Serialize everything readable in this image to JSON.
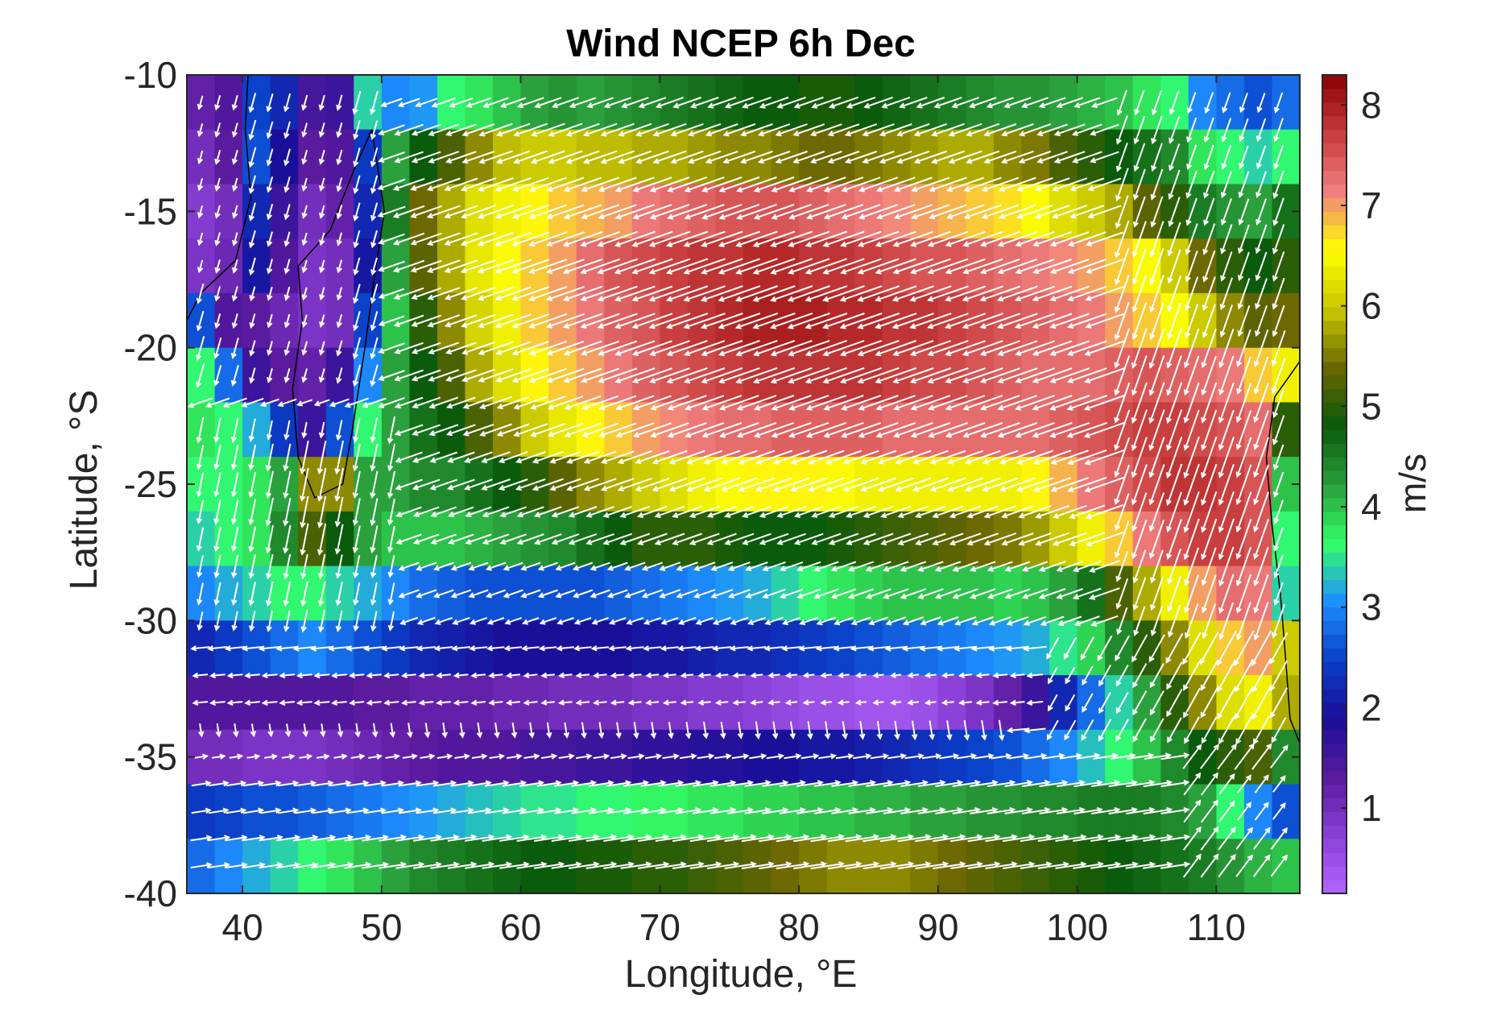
{
  "chart_data": {
    "type": "heatmap",
    "subtype": "vector-field-over-colormap",
    "title": "Wind NCEP 6h Dec",
    "xlabel": "Longitude, °E",
    "ylabel": "Latitude, °S",
    "xlim": [
      36,
      116
    ],
    "ylim": [
      -40,
      -10
    ],
    "xticks": [
      40,
      50,
      60,
      70,
      80,
      90,
      100,
      110
    ],
    "xtick_labels": [
      "40",
      "50",
      "60",
      "70",
      "80",
      "90",
      "100",
      "110"
    ],
    "yticks": [
      -10,
      -15,
      -20,
      -25,
      -30,
      -35,
      -40
    ],
    "ytick_labels": [
      "-10",
      "-15",
      "-20",
      "-25",
      "-30",
      "-35",
      "-40"
    ],
    "colorbar": {
      "label": "m/s",
      "range": [
        0.15,
        8.3
      ],
      "ticks": [
        1,
        2,
        3,
        4,
        5,
        6,
        7,
        8
      ],
      "tick_labels": [
        "1",
        "2",
        "3",
        "4",
        "5",
        "6",
        "7",
        "8"
      ],
      "colors": [
        "#b266ff",
        "#8a3fd6",
        "#5a1a9e",
        "#1a0f99",
        "#0a3fc8",
        "#1e90ff",
        "#33ff66",
        "#2a9d3a",
        "#0a5a0a",
        "#6b6600",
        "#c8c800",
        "#ffff00",
        "#f08080",
        "#c83c3c",
        "#8b0000"
      ]
    },
    "field_speed_m_s": {
      "description_of_grid": "wind speed, 1.875 deg longitude x ~1.9 deg latitude cells",
      "lon": [
        37,
        39,
        41,
        43,
        45,
        47,
        49,
        51,
        53,
        55,
        57,
        59,
        61,
        63,
        65,
        67,
        69,
        71,
        73,
        75,
        77,
        79,
        81,
        83,
        85,
        87,
        89,
        91,
        93,
        95,
        97,
        99,
        101,
        103,
        105,
        107,
        109,
        111,
        113,
        115
      ],
      "lat": [
        -11,
        -13,
        -15,
        -17,
        -19,
        -21,
        -23,
        -25,
        -27,
        -29,
        -31,
        -33,
        -35,
        -37,
        -39
      ],
      "values": [
        [
          1.2,
          1.4,
          2.5,
          2.2,
          1.5,
          1.6,
          3.4,
          3.0,
          3.1,
          3.6,
          3.8,
          4.0,
          4.2,
          4.3,
          4.2,
          4.3,
          4.4,
          4.5,
          4.6,
          4.7,
          4.8,
          4.8,
          4.9,
          4.9,
          4.8,
          4.7,
          4.6,
          4.5,
          4.4,
          4.3,
          4.3,
          4.2,
          4.1,
          4.0,
          3.8,
          3.6,
          3.0,
          2.8,
          2.6,
          2.8
        ],
        [
          1.0,
          1.3,
          2.6,
          1.9,
          1.3,
          1.4,
          2.4,
          4.2,
          4.8,
          5.2,
          5.6,
          5.9,
          6.0,
          6.0,
          5.9,
          5.9,
          5.8,
          5.8,
          5.7,
          5.6,
          5.6,
          5.5,
          5.4,
          5.4,
          5.5,
          5.6,
          5.7,
          5.8,
          5.8,
          5.6,
          5.5,
          5.2,
          5.0,
          4.8,
          4.6,
          4.4,
          3.8,
          3.6,
          3.4,
          3.6
        ],
        [
          0.8,
          1.0,
          2.2,
          1.6,
          1.0,
          1.2,
          2.2,
          4.5,
          5.4,
          5.8,
          6.2,
          6.4,
          6.6,
          6.8,
          6.9,
          7.0,
          7.2,
          7.3,
          7.4,
          7.5,
          7.5,
          7.5,
          7.4,
          7.3,
          7.2,
          7.1,
          7.0,
          6.9,
          6.8,
          6.7,
          6.5,
          6.2,
          6.0,
          5.8,
          5.3,
          5.0,
          4.5,
          4.3,
          4.2,
          4.6
        ],
        [
          0.9,
          1.1,
          2.0,
          1.4,
          0.9,
          1.0,
          2.0,
          4.2,
          5.3,
          5.8,
          6.3,
          6.5,
          6.8,
          7.0,
          7.3,
          7.5,
          7.6,
          7.7,
          7.8,
          7.8,
          7.9,
          7.9,
          7.8,
          7.8,
          7.7,
          7.6,
          7.5,
          7.5,
          7.4,
          7.3,
          7.2,
          7.1,
          7.0,
          6.8,
          6.5,
          6.0,
          5.4,
          5.0,
          4.8,
          5.0
        ],
        [
          2.6,
          1.4,
          1.3,
          1.1,
          0.9,
          1.0,
          2.5,
          4.0,
          5.0,
          5.6,
          6.1,
          6.4,
          6.8,
          7.0,
          7.2,
          7.4,
          7.5,
          7.7,
          7.8,
          7.9,
          8.0,
          8.0,
          8.0,
          7.9,
          7.9,
          7.8,
          7.8,
          7.7,
          7.6,
          7.5,
          7.4,
          7.3,
          7.2,
          7.0,
          6.8,
          6.5,
          6.0,
          5.6,
          5.3,
          5.4
        ],
        [
          3.6,
          2.8,
          1.6,
          1.3,
          1.2,
          1.6,
          3.0,
          4.2,
          4.8,
          5.2,
          5.8,
          6.2,
          6.6,
          6.8,
          7.0,
          7.2,
          7.4,
          7.5,
          7.6,
          7.7,
          7.8,
          7.8,
          7.8,
          7.8,
          7.8,
          7.7,
          7.6,
          7.6,
          7.5,
          7.4,
          7.3,
          7.3,
          7.3,
          7.4,
          7.5,
          7.4,
          7.3,
          7.2,
          6.8,
          6.4
        ],
        [
          3.8,
          3.6,
          3.2,
          2.4,
          1.6,
          2.6,
          3.6,
          4.2,
          4.6,
          4.8,
          5.2,
          5.6,
          6.0,
          6.3,
          6.6,
          6.8,
          7.0,
          7.1,
          7.2,
          7.3,
          7.3,
          7.4,
          7.4,
          7.4,
          7.4,
          7.3,
          7.3,
          7.3,
          7.3,
          7.3,
          7.3,
          7.4,
          7.5,
          7.6,
          7.7,
          7.7,
          7.6,
          7.5,
          7.3,
          5.0
        ],
        [
          3.6,
          3.6,
          3.8,
          4.2,
          5.6,
          5.6,
          4.2,
          4.2,
          4.4,
          4.4,
          4.6,
          4.8,
          5.0,
          5.3,
          5.6,
          5.8,
          6.0,
          6.2,
          6.4,
          6.5,
          6.6,
          6.6,
          6.6,
          6.5,
          6.4,
          6.4,
          6.4,
          6.4,
          6.4,
          6.4,
          6.6,
          6.9,
          7.2,
          7.4,
          7.6,
          7.8,
          7.8,
          7.7,
          7.5,
          4.0
        ],
        [
          3.4,
          3.6,
          3.8,
          4.4,
          5.2,
          4.8,
          4.2,
          4.0,
          4.0,
          4.0,
          4.1,
          4.2,
          4.3,
          4.4,
          4.6,
          4.8,
          5.0,
          5.0,
          5.0,
          4.9,
          4.8,
          4.8,
          4.8,
          4.9,
          5.0,
          5.1,
          5.2,
          5.3,
          5.4,
          5.5,
          5.7,
          6.0,
          6.4,
          6.8,
          7.2,
          7.5,
          7.7,
          7.7,
          7.5,
          3.6
        ],
        [
          3.0,
          3.2,
          3.4,
          3.6,
          3.6,
          3.4,
          3.2,
          3.0,
          2.8,
          2.7,
          2.6,
          2.6,
          2.6,
          2.6,
          2.6,
          2.7,
          2.8,
          2.9,
          3.0,
          3.1,
          3.2,
          3.4,
          3.6,
          3.8,
          3.9,
          4.0,
          4.0,
          4.0,
          4.0,
          3.9,
          4.0,
          4.2,
          4.6,
          5.2,
          5.8,
          6.4,
          7.0,
          7.3,
          7.2,
          3.4
        ],
        [
          2.2,
          2.4,
          2.6,
          2.8,
          3.0,
          2.8,
          2.6,
          2.4,
          2.2,
          2.1,
          2.0,
          1.9,
          1.9,
          1.9,
          1.9,
          1.9,
          2.0,
          2.0,
          2.1,
          2.2,
          2.2,
          2.3,
          2.4,
          2.5,
          2.6,
          2.7,
          2.8,
          2.9,
          3.0,
          3.1,
          3.2,
          3.5,
          3.9,
          4.4,
          5.0,
          5.6,
          6.2,
          6.8,
          7.0,
          6.0
        ],
        [
          1.4,
          1.4,
          1.4,
          1.4,
          1.4,
          1.4,
          1.3,
          1.3,
          1.2,
          1.2,
          1.2,
          1.1,
          1.1,
          1.0,
          1.0,
          1.0,
          0.9,
          0.9,
          0.8,
          0.8,
          0.7,
          0.6,
          0.5,
          0.5,
          0.4,
          0.4,
          0.5,
          0.7,
          0.9,
          1.2,
          1.6,
          2.2,
          2.8,
          3.4,
          4.2,
          5.0,
          5.6,
          6.2,
          6.4,
          5.8
        ],
        [
          1.0,
          1.0,
          0.9,
          0.9,
          0.9,
          1.0,
          1.1,
          1.2,
          1.3,
          1.4,
          1.4,
          1.4,
          1.5,
          1.5,
          1.6,
          1.6,
          1.7,
          1.7,
          1.8,
          1.8,
          1.9,
          1.9,
          2.0,
          2.0,
          2.1,
          2.2,
          2.3,
          2.4,
          2.5,
          2.6,
          2.8,
          3.0,
          3.3,
          3.6,
          4.0,
          4.4,
          4.8,
          5.0,
          5.2,
          4.4
        ],
        [
          2.4,
          2.5,
          2.6,
          2.6,
          2.7,
          2.8,
          2.9,
          3.0,
          3.1,
          3.2,
          3.3,
          3.4,
          3.5,
          3.5,
          3.6,
          3.6,
          3.7,
          3.7,
          3.8,
          3.8,
          3.9,
          3.9,
          4.0,
          4.0,
          4.1,
          4.1,
          4.2,
          4.2,
          4.3,
          4.3,
          4.4,
          4.4,
          4.5,
          4.5,
          4.5,
          4.4,
          4.2,
          3.6,
          3.0,
          2.6
        ],
        [
          2.8,
          3.0,
          3.2,
          3.4,
          3.6,
          3.8,
          4.0,
          4.2,
          4.4,
          4.5,
          4.6,
          4.7,
          4.8,
          4.8,
          4.9,
          4.9,
          5.0,
          5.0,
          5.1,
          5.2,
          5.3,
          5.4,
          5.5,
          5.6,
          5.6,
          5.6,
          5.5,
          5.4,
          5.3,
          5.2,
          5.1,
          5.0,
          4.9,
          4.8,
          4.7,
          4.6,
          4.5,
          4.3,
          4.1,
          4.0
        ]
      ]
    },
    "vectors": "white arrows showing wind direction over the whole domain: easterly trade winds in the north curving south-westward near Madagascar, strong south-south-westward flow off western Australia, westerly winds south of 35°S",
    "coastlines": [
      "Africa (east coast)",
      "Madagascar",
      "Western Australia"
    ]
  }
}
